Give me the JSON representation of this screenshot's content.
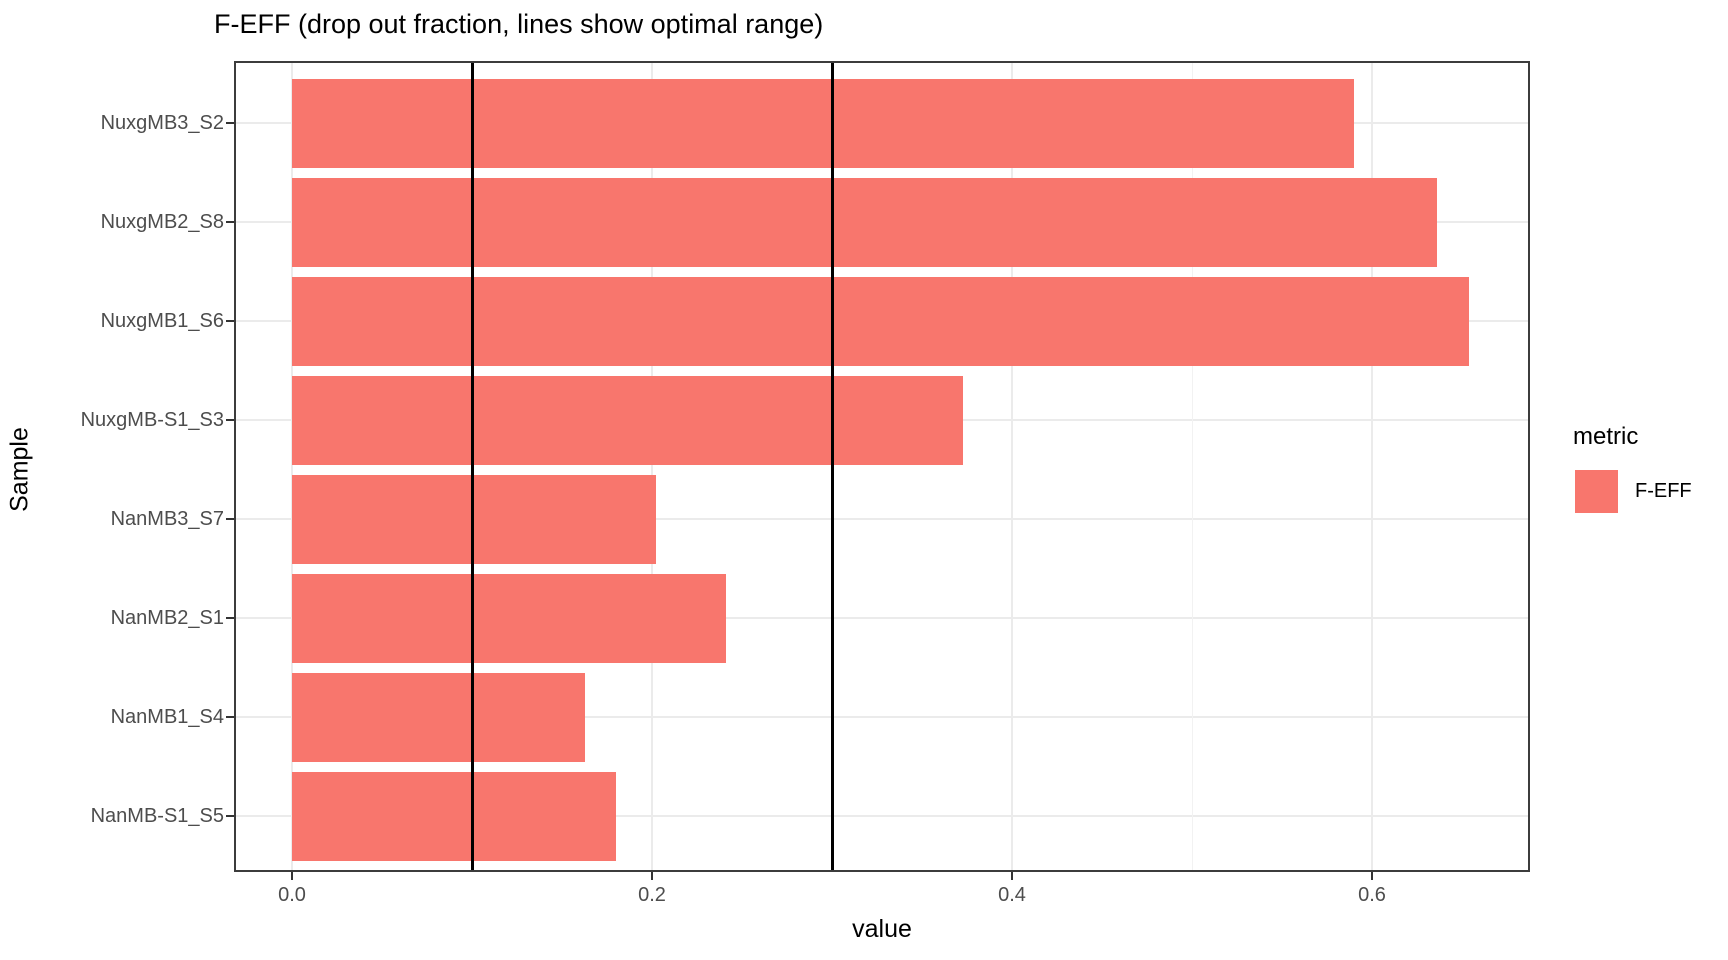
{
  "chart_data": {
    "type": "bar",
    "orientation": "horizontal",
    "title": "F-EFF (drop out fraction, lines show optimal range)",
    "xlabel": "value",
    "ylabel": "Sample",
    "categories": [
      "NuxgMB3_S2",
      "NuxgMB2_S8",
      "NuxgMB1_S6",
      "NuxgMB-S1_S3",
      "NanMB3_S7",
      "NanMB2_S1",
      "NanMB1_S4",
      "NanMB-S1_S5"
    ],
    "series": [
      {
        "name": "F-EFF",
        "values": [
          0.59,
          0.636,
          0.654,
          0.373,
          0.202,
          0.241,
          0.163,
          0.18
        ]
      }
    ],
    "x_ticks": [
      0.0,
      0.2,
      0.4,
      0.6
    ],
    "x_tick_labels": [
      "0.0",
      "0.2",
      "0.4",
      "0.6"
    ],
    "x_minor_gridlines": [
      0.1,
      0.3,
      0.5
    ],
    "xlim": [
      -0.031,
      0.687
    ],
    "reference_vlines": [
      0.1,
      0.3
    ],
    "grid": true,
    "legend": {
      "position": "right",
      "title": "metric",
      "entries": [
        {
          "label": "F-EFF",
          "color": "#F8766D"
        }
      ]
    }
  },
  "colors": {
    "bar": "#F8766D",
    "panel_border": "#3c3c3c",
    "grid_major": "#ebebeb",
    "grid_minor": "#f2f2f2",
    "tick": "#333333",
    "axis_text": "#4d4d4d",
    "title_text": "#000000",
    "vline": "#000000"
  }
}
